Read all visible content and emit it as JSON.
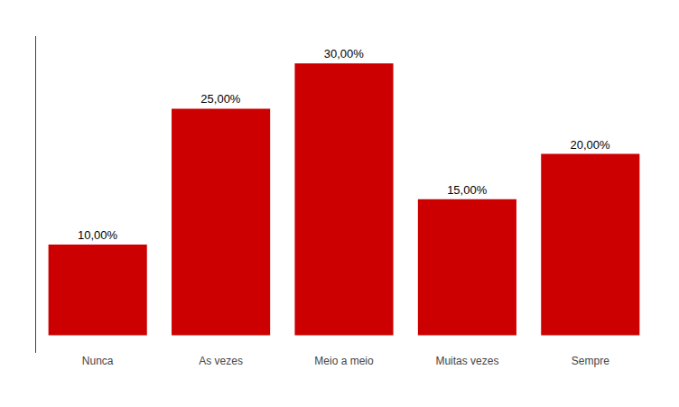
{
  "chart_data": {
    "type": "bar",
    "categories": [
      "Nunca",
      "As vezes",
      "Meio a meio",
      "Muitas vezes",
      "Sempre"
    ],
    "values": [
      10,
      25,
      30,
      15,
      20
    ],
    "value_labels": [
      "10,00%",
      "25,00%",
      "30,00%",
      "15,00%",
      "20,00%"
    ],
    "data_labels": true,
    "color": "#CC0000",
    "ylim": [
      -1.9335,
      33
    ],
    "yticks": [],
    "tick_labels": "x",
    "grid": false
  }
}
